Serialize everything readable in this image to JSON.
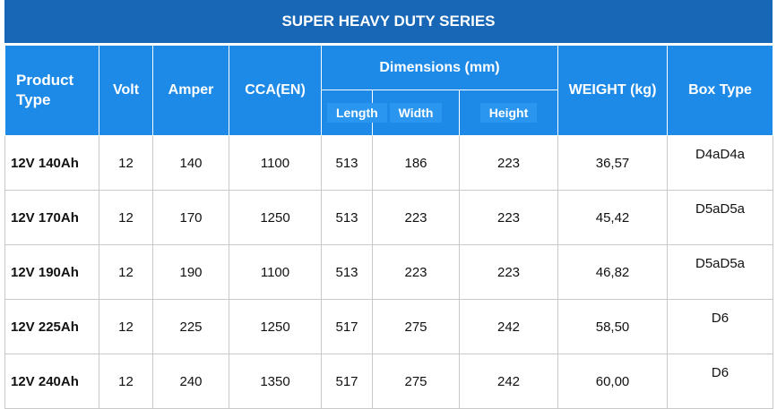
{
  "title": "SUPER HEAVY DUTY SERIES",
  "headers": {
    "product_type": "Product Type",
    "volt": "Volt",
    "amper": "Amper",
    "cca": "CCA(EN)",
    "dimensions": "Dimensions (mm)",
    "length": "Length",
    "width": "Width",
    "height": "Height",
    "weight": "WEIGHT (kg)",
    "box_type": "Box Type"
  },
  "rows": [
    {
      "model": "12V 140Ah",
      "volt": "12",
      "amper": "140",
      "cca": "1100",
      "length": "513",
      "width": "186",
      "height": "223",
      "weight": "36,57",
      "box": "D4aD4a"
    },
    {
      "model": "12V 170Ah",
      "volt": "12",
      "amper": "170",
      "cca": "1250",
      "length": "513",
      "width": "223",
      "height": "223",
      "weight": "45,42",
      "box": "D5aD5a"
    },
    {
      "model": "12V 190Ah",
      "volt": "12",
      "amper": "190",
      "cca": "1100",
      "length": "513",
      "width": "223",
      "height": "223",
      "weight": "46,82",
      "box": "D5aD5a"
    },
    {
      "model": "12V 225Ah",
      "volt": "12",
      "amper": "225",
      "cca": "1250",
      "length": "517",
      "width": "275",
      "height": "242",
      "weight": "58,50",
      "box": "D6"
    },
    {
      "model": "12V 240Ah",
      "volt": "12",
      "amper": "240",
      "cca": "1350",
      "length": "517",
      "width": "275",
      "height": "242",
      "weight": "60,00",
      "box": "D6"
    }
  ]
}
